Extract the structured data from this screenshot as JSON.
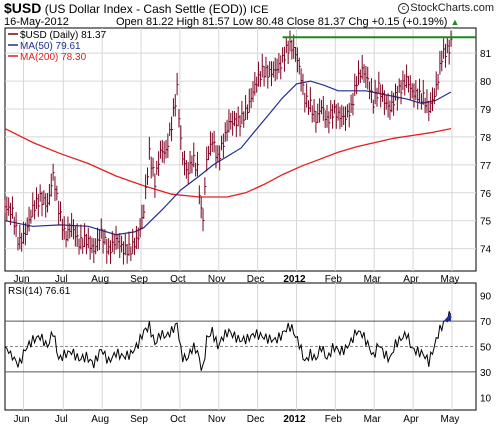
{
  "header": {
    "symbol": "$USD",
    "name": "(US Dollar Index - Cash Settle (EOD))",
    "exchange": "ICE",
    "brand": "StockCharts.com",
    "date": "16-May-2012",
    "quote": "Open 81.22  High 81.57  Low 80.48  Close 81.37  Chg +0.15 (+0.19%)",
    "quote_arrow": "▲"
  },
  "colors": {
    "price": "#7a0020",
    "ma50": "#1f2f8f",
    "ma200": "#e02020",
    "resistance": "#1a8a1a",
    "grid": "#d8d8d8",
    "axis": "#000000"
  },
  "chart_data": [
    {
      "type": "line",
      "style": "high-low-close bars",
      "legend": [
        {
          "key": "price",
          "label": "$USD (Daily) 81.37"
        },
        {
          "key": "ma50",
          "label": "MA(50) 79.61"
        },
        {
          "key": "ma200",
          "label": "MA(200) 78.30"
        }
      ],
      "legend_position": "top-left",
      "ylim": [
        73.2,
        81.9
      ],
      "y_ticks": [
        74,
        75,
        76,
        77,
        78,
        79,
        80,
        81
      ],
      "x_labels": [
        "Jun",
        "Jul",
        "Aug",
        "Sep",
        "Oct",
        "Nov",
        "Dec",
        "2012",
        "Feb",
        "Mar",
        "Apr",
        "May"
      ],
      "x_label_positions": [
        20,
        63,
        105,
        147,
        189,
        231,
        273,
        315,
        357,
        399,
        441,
        483
      ],
      "x_range": [
        0,
        509
      ],
      "grid": true,
      "price_close": [
        [
          0,
          75.4
        ],
        [
          8,
          75.2
        ],
        [
          15,
          74.1
        ],
        [
          22,
          74.5
        ],
        [
          30,
          75.4
        ],
        [
          38,
          75.8
        ],
        [
          46,
          75.6
        ],
        [
          52,
          76.7
        ],
        [
          58,
          75.5
        ],
        [
          65,
          74.5
        ],
        [
          72,
          74.9
        ],
        [
          80,
          74.3
        ],
        [
          88,
          74.4
        ],
        [
          96,
          74.0
        ],
        [
          104,
          74.6
        ],
        [
          112,
          73.9
        ],
        [
          120,
          74.3
        ],
        [
          128,
          73.9
        ],
        [
          136,
          73.9
        ],
        [
          144,
          74.3
        ],
        [
          150,
          75.3
        ],
        [
          156,
          77.3
        ],
        [
          162,
          76.3
        ],
        [
          168,
          77.4
        ],
        [
          174,
          77.4
        ],
        [
          180,
          78.4
        ],
        [
          186,
          79.7
        ],
        [
          191,
          77.4
        ],
        [
          197,
          76.7
        ],
        [
          203,
          77.3
        ],
        [
          208,
          76.9
        ],
        [
          212,
          75.4
        ],
        [
          214,
          75.2
        ],
        [
          218,
          77.3
        ],
        [
          224,
          78.0
        ],
        [
          230,
          77.3
        ],
        [
          236,
          77.9
        ],
        [
          242,
          78.6
        ],
        [
          248,
          78.6
        ],
        [
          254,
          78.6
        ],
        [
          262,
          79.0
        ],
        [
          270,
          79.8
        ],
        [
          278,
          80.3
        ],
        [
          285,
          80.2
        ],
        [
          292,
          80.3
        ],
        [
          298,
          80.5
        ],
        [
          304,
          81.0
        ],
        [
          309,
          81.2
        ],
        [
          314,
          80.9
        ],
        [
          318,
          80.4
        ],
        [
          324,
          79.3
        ],
        [
          330,
          79.1
        ],
        [
          336,
          78.6
        ],
        [
          342,
          79.1
        ],
        [
          348,
          78.6
        ],
        [
          355,
          79.0
        ],
        [
          362,
          78.8
        ],
        [
          368,
          78.8
        ],
        [
          374,
          79.1
        ],
        [
          380,
          80.1
        ],
        [
          386,
          80.5
        ],
        [
          392,
          80.1
        ],
        [
          398,
          79.3
        ],
        [
          404,
          79.8
        ],
        [
          410,
          79.3
        ],
        [
          416,
          79.0
        ],
        [
          422,
          79.4
        ],
        [
          428,
          79.7
        ],
        [
          434,
          80.0
        ],
        [
          440,
          79.5
        ],
        [
          446,
          79.4
        ],
        [
          452,
          79.3
        ],
        [
          458,
          78.9
        ],
        [
          464,
          79.4
        ],
        [
          468,
          80.0
        ],
        [
          472,
          80.8
        ],
        [
          476,
          81.0
        ],
        [
          480,
          81.1
        ],
        [
          482,
          81.37
        ]
      ],
      "ma50": [
        [
          0,
          75.0
        ],
        [
          30,
          74.8
        ],
        [
          60,
          74.85
        ],
        [
          90,
          74.8
        ],
        [
          120,
          74.5
        ],
        [
          140,
          74.6
        ],
        [
          150,
          74.75
        ],
        [
          170,
          75.4
        ],
        [
          190,
          76.1
        ],
        [
          210,
          76.6
        ],
        [
          225,
          77.0
        ],
        [
          240,
          77.3
        ],
        [
          255,
          77.6
        ],
        [
          270,
          78.2
        ],
        [
          285,
          78.8
        ],
        [
          300,
          79.4
        ],
        [
          315,
          79.9
        ],
        [
          330,
          80.0
        ],
        [
          345,
          79.85
        ],
        [
          360,
          79.65
        ],
        [
          375,
          79.65
        ],
        [
          390,
          79.65
        ],
        [
          405,
          79.55
        ],
        [
          420,
          79.45
        ],
        [
          435,
          79.35
        ],
        [
          450,
          79.2
        ],
        [
          465,
          79.3
        ],
        [
          482,
          79.61
        ]
      ],
      "ma200": [
        [
          0,
          78.3
        ],
        [
          30,
          77.8
        ],
        [
          60,
          77.4
        ],
        [
          90,
          77.05
        ],
        [
          120,
          76.6
        ],
        [
          150,
          76.25
        ],
        [
          180,
          75.95
        ],
        [
          210,
          75.85
        ],
        [
          240,
          75.85
        ],
        [
          260,
          76.0
        ],
        [
          280,
          76.3
        ],
        [
          300,
          76.65
        ],
        [
          320,
          76.95
        ],
        [
          340,
          77.2
        ],
        [
          360,
          77.45
        ],
        [
          380,
          77.65
        ],
        [
          400,
          77.8
        ],
        [
          420,
          77.95
        ],
        [
          440,
          78.05
        ],
        [
          460,
          78.15
        ],
        [
          482,
          78.3
        ]
      ],
      "resistance": {
        "from": 300,
        "to": 509,
        "value": 81.57
      }
    },
    {
      "type": "line",
      "legend": [
        {
          "key": "rsi",
          "label": "RSI(14) 76.61"
        }
      ],
      "ylim": [
        0,
        100
      ],
      "y_ticks": [
        10,
        30,
        50,
        70,
        90
      ],
      "reference_lines": [
        70,
        50,
        30
      ],
      "x_labels": [
        "Jun",
        "Jul",
        "Aug",
        "Sep",
        "Oct",
        "Nov",
        "Dec",
        "2012",
        "Feb",
        "Mar",
        "Apr",
        "May"
      ],
      "rsi": [
        [
          0,
          50
        ],
        [
          8,
          42
        ],
        [
          15,
          35
        ],
        [
          22,
          48
        ],
        [
          30,
          55
        ],
        [
          38,
          58
        ],
        [
          46,
          50
        ],
        [
          52,
          62
        ],
        [
          58,
          40
        ],
        [
          65,
          44
        ],
        [
          72,
          46
        ],
        [
          80,
          40
        ],
        [
          88,
          42
        ],
        [
          96,
          36
        ],
        [
          104,
          48
        ],
        [
          112,
          38
        ],
        [
          120,
          45
        ],
        [
          128,
          42
        ],
        [
          136,
          44
        ],
        [
          144,
          52
        ],
        [
          150,
          62
        ],
        [
          156,
          66
        ],
        [
          162,
          52
        ],
        [
          168,
          60
        ],
        [
          174,
          58
        ],
        [
          180,
          62
        ],
        [
          186,
          68
        ],
        [
          191,
          42
        ],
        [
          197,
          40
        ],
        [
          203,
          50
        ],
        [
          208,
          46
        ],
        [
          212,
          34
        ],
        [
          214,
          32
        ],
        [
          218,
          56
        ],
        [
          224,
          62
        ],
        [
          230,
          50
        ],
        [
          236,
          58
        ],
        [
          242,
          62
        ],
        [
          248,
          58
        ],
        [
          254,
          55
        ],
        [
          262,
          56
        ],
        [
          270,
          60
        ],
        [
          278,
          58
        ],
        [
          285,
          56
        ],
        [
          292,
          55
        ],
        [
          298,
          58
        ],
        [
          304,
          64
        ],
        [
          309,
          66
        ],
        [
          314,
          58
        ],
        [
          318,
          52
        ],
        [
          324,
          38
        ],
        [
          330,
          44
        ],
        [
          336,
          40
        ],
        [
          342,
          50
        ],
        [
          348,
          40
        ],
        [
          355,
          50
        ],
        [
          362,
          46
        ],
        [
          368,
          48
        ],
        [
          374,
          54
        ],
        [
          380,
          62
        ],
        [
          386,
          60
        ],
        [
          392,
          52
        ],
        [
          398,
          42
        ],
        [
          404,
          52
        ],
        [
          410,
          44
        ],
        [
          416,
          40
        ],
        [
          422,
          52
        ],
        [
          428,
          56
        ],
        [
          434,
          60
        ],
        [
          440,
          48
        ],
        [
          446,
          46
        ],
        [
          452,
          44
        ],
        [
          458,
          38
        ],
        [
          464,
          50
        ],
        [
          468,
          60
        ],
        [
          472,
          66
        ],
        [
          476,
          70
        ],
        [
          480,
          74
        ],
        [
          482,
          76.61
        ]
      ]
    }
  ]
}
